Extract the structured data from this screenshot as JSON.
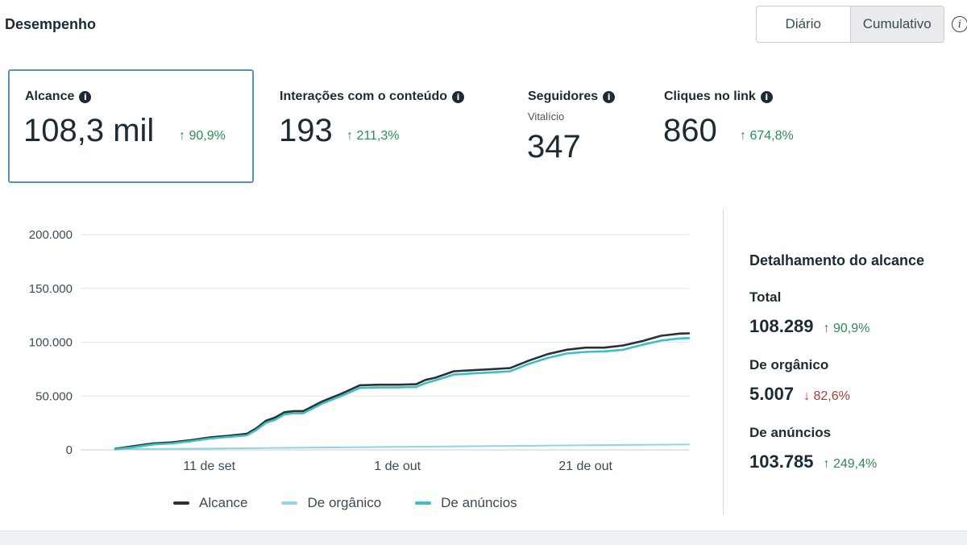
{
  "header": {
    "title": "Desempenho"
  },
  "toggle": {
    "daily": "Diário",
    "cumulative": "Cumulativo",
    "selected": "cumulative"
  },
  "info_icon": "info-icon",
  "metrics": [
    {
      "label": "Alcance",
      "value": "108,3 mil",
      "delta": "↑ 90,9%",
      "sub": ""
    },
    {
      "label": "Interações com o conteúdo",
      "value": "193",
      "delta": "↑ 211,3%",
      "sub": ""
    },
    {
      "label": "Seguidores",
      "value": "347",
      "delta": "",
      "sub": "Vitalício"
    },
    {
      "label": "Cliques no link",
      "value": "860",
      "delta": "↑ 674,8%",
      "sub": ""
    }
  ],
  "chart_data": {
    "type": "line",
    "x_ticks": [
      "11 de set",
      "1 de out",
      "21 de out"
    ],
    "y_ticks": [
      "200.000",
      "150.000",
      "100.000",
      "50.000",
      "0"
    ],
    "ylim": [
      0,
      200000
    ],
    "xlim": [
      0,
      61
    ],
    "x_tick_positions": [
      10,
      30,
      50
    ],
    "grid": true,
    "legend_position": "bottom",
    "series": [
      {
        "name": "Alcance",
        "color": "#2b3035",
        "x": [
          0,
          2,
          4,
          6,
          8,
          10,
          12,
          14,
          15,
          16,
          17,
          18,
          19,
          20,
          22,
          24,
          26,
          28,
          30,
          32,
          33,
          34,
          36,
          38,
          40,
          42,
          44,
          46,
          48,
          50,
          52,
          54,
          56,
          58,
          60,
          61
        ],
        "values": [
          1000,
          3500,
          6000,
          7000,
          9000,
          11500,
          13000,
          15000,
          20000,
          27000,
          30000,
          35000,
          36000,
          36000,
          45000,
          52000,
          60000,
          60500,
          60500,
          61000,
          65000,
          67000,
          73000,
          74000,
          75000,
          76000,
          83000,
          89000,
          93000,
          95000,
          95000,
          97000,
          101000,
          106000,
          108000,
          108289
        ]
      },
      {
        "name": "De orgânico",
        "color": "#8fd4e8",
        "x": [
          0,
          10,
          20,
          30,
          40,
          50,
          61
        ],
        "values": [
          500,
          1200,
          2000,
          2800,
          3500,
          4300,
          5007
        ]
      },
      {
        "name": "De anúncios",
        "color": "#3cbfc3",
        "x": [
          0,
          2,
          4,
          6,
          8,
          10,
          12,
          14,
          15,
          16,
          17,
          18,
          19,
          20,
          22,
          24,
          26,
          28,
          30,
          32,
          33,
          34,
          36,
          38,
          40,
          42,
          44,
          46,
          48,
          50,
          52,
          54,
          56,
          58,
          60,
          61
        ],
        "values": [
          500,
          2500,
          5000,
          6000,
          8000,
          10500,
          12000,
          13500,
          18500,
          25000,
          28000,
          33000,
          34000,
          34000,
          43000,
          50000,
          57500,
          58000,
          58000,
          58500,
          62000,
          64500,
          70000,
          71000,
          72000,
          73000,
          80000,
          85500,
          89500,
          91000,
          91500,
          93000,
          97500,
          101500,
          103500,
          103785
        ]
      }
    ]
  },
  "breakdown": {
    "title": "Detalhamento do alcance",
    "items": [
      {
        "label": "Total",
        "value": "108.289",
        "delta": "↑ 90,9%",
        "trend": "up"
      },
      {
        "label": "De orgânico",
        "value": "5.007",
        "delta": "↓ 82,6%",
        "trend": "down"
      },
      {
        "label": "De anúncios",
        "value": "103.785",
        "delta": "↑ 249,4%",
        "trend": "up"
      }
    ]
  }
}
